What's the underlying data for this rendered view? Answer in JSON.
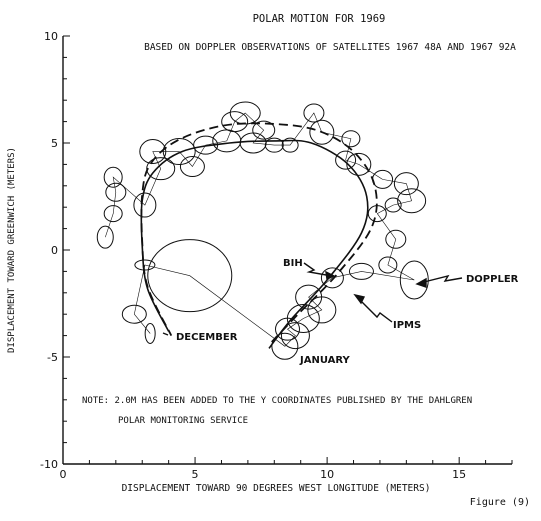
{
  "chart_data": {
    "type": "scatter",
    "title": "POLAR MOTION FOR 1969",
    "subtitle": "BASED ON DOPPLER OBSERVATIONS OF SATELLITES 1967 48A AND 1967 92A",
    "xlabel": "DISPLACEMENT TOWARD 90 DEGREES WEST LONGITUDE (METERS)",
    "ylabel": "DISPLACEMENT TOWARD GREENWICH (METERS)",
    "xlim": [
      0,
      17
    ],
    "ylim": [
      -10,
      10
    ],
    "x_ticks": [
      "0",
      "5",
      "10",
      "15"
    ],
    "y_ticks": [
      "10",
      "5",
      "0",
      "-5",
      "-10"
    ],
    "annotations": {
      "bih": "BIH",
      "doppler": "DOPPLER",
      "ipms": "IPMS",
      "december": "DECEMBER",
      "january": "JANUARY"
    },
    "note_line1": "NOTE:  2.0M HAS BEEN ADDED TO THE Y COORDINATES PUBLISHED BY THE DAHLGREN",
    "note_line2": "POLAR MONITORING SERVICE",
    "figure_label": "Figure (9)",
    "series": [
      {
        "name": "DOPPLER",
        "points": [
          {
            "x": 1.6,
            "y": 0.6
          },
          {
            "x": 1.9,
            "y": 1.7
          },
          {
            "x": 2.0,
            "y": 2.7
          },
          {
            "x": 1.9,
            "y": 3.4
          },
          {
            "x": 3.1,
            "y": 2.1
          },
          {
            "x": 3.7,
            "y": 3.8
          },
          {
            "x": 3.4,
            "y": 4.6
          },
          {
            "x": 4.4,
            "y": 4.6
          },
          {
            "x": 4.9,
            "y": 3.9
          },
          {
            "x": 5.4,
            "y": 4.9
          },
          {
            "x": 6.2,
            "y": 5.1
          },
          {
            "x": 6.5,
            "y": 6.0
          },
          {
            "x": 6.9,
            "y": 6.4
          },
          {
            "x": 7.6,
            "y": 5.6
          },
          {
            "x": 7.2,
            "y": 5.0
          },
          {
            "x": 8.0,
            "y": 4.9
          },
          {
            "x": 8.6,
            "y": 4.9
          },
          {
            "x": 9.5,
            "y": 6.4
          },
          {
            "x": 9.8,
            "y": 5.5
          },
          {
            "x": 10.9,
            "y": 5.2
          },
          {
            "x": 10.7,
            "y": 4.2
          },
          {
            "x": 11.2,
            "y": 4.0
          },
          {
            "x": 12.1,
            "y": 3.3
          },
          {
            "x": 13.0,
            "y": 3.1
          },
          {
            "x": 13.2,
            "y": 2.3
          },
          {
            "x": 12.5,
            "y": 2.1
          },
          {
            "x": 11.9,
            "y": 1.7
          },
          {
            "x": 12.6,
            "y": 0.5
          },
          {
            "x": 12.3,
            "y": -0.7
          },
          {
            "x": 13.3,
            "y": -1.4
          },
          {
            "x": 11.3,
            "y": -1.0
          },
          {
            "x": 10.2,
            "y": -1.3
          },
          {
            "x": 9.3,
            "y": -2.2
          },
          {
            "x": 9.8,
            "y": -2.8
          },
          {
            "x": 9.1,
            "y": -3.2
          },
          {
            "x": 8.5,
            "y": -3.7
          },
          {
            "x": 8.8,
            "y": -4.0
          },
          {
            "x": 8.4,
            "y": -4.5
          },
          {
            "x": 4.8,
            "y": -1.2
          },
          {
            "x": 3.1,
            "y": -0.7
          },
          {
            "x": 2.7,
            "y": -3.0
          },
          {
            "x": 3.3,
            "y": -3.9
          }
        ]
      },
      {
        "name": "BIH",
        "points": []
      },
      {
        "name": "IPMS",
        "points": []
      }
    ]
  }
}
